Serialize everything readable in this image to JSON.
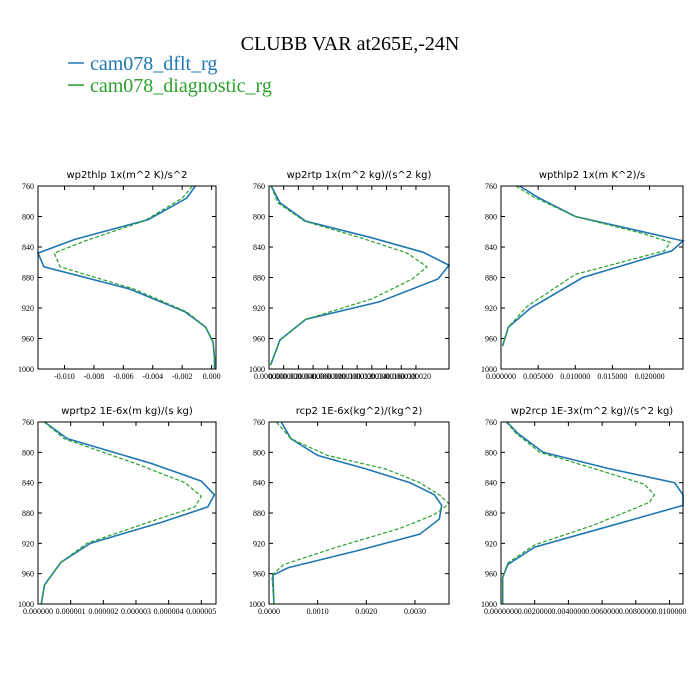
{
  "title": "CLUBB VAR at265E,-24N",
  "legend": [
    {
      "label": "cam078_dflt_rg",
      "color": "#1f77b4",
      "dash": "solid"
    },
    {
      "label": "cam078_diagnostic_rg",
      "color": "#2ca02c",
      "dash": "dashed"
    }
  ],
  "chart_data": [
    {
      "type": "line",
      "title": "wp2thlp  1x(m^2 K)/s^2",
      "xlim": [
        -0.0118,
        0.0003
      ],
      "ylim": [
        760,
        1000
      ],
      "y_reversed": true,
      "xticks": [
        -0.01,
        -0.008,
        -0.006,
        -0.004,
        -0.002,
        0.0
      ],
      "xtick_labels": [
        "-0.010",
        "-0.008",
        "-0.006",
        "-0.004",
        "-0.002",
        "0.000"
      ],
      "yticks": [
        760,
        800,
        840,
        880,
        920,
        960,
        1000
      ],
      "ytick_labels": [
        "760",
        "800",
        "840",
        "880",
        "920",
        "960",
        "1000"
      ],
      "series": [
        {
          "name": "cam078_dflt_rg",
          "x": [
            -0.0011,
            -0.0017,
            -0.0043,
            -0.0093,
            -0.0118,
            -0.0114,
            -0.0056,
            -0.0018,
            -0.0004,
            0.0001,
            0.0002,
            0.0002
          ],
          "y": [
            754,
            776,
            804,
            830,
            848,
            866,
            895,
            925,
            945,
            965,
            985,
            1000
          ]
        },
        {
          "name": "cam078_diagnostic_rg",
          "x": [
            -0.0013,
            -0.002,
            -0.0046,
            -0.0086,
            -0.0107,
            -0.0103,
            -0.0053,
            -0.0017,
            -0.0004,
            0.0001,
            0.0002,
            0.0002
          ],
          "y": [
            754,
            776,
            806,
            832,
            848,
            866,
            895,
            925,
            945,
            965,
            985,
            1000
          ]
        }
      ]
    },
    {
      "type": "line",
      "title": "wp2rtp  1x(m^2 kg)/(s^2 kg)",
      "xlim": [
        0.0,
        2.45e-05
      ],
      "ylim": [
        760,
        1000
      ],
      "y_reversed": true,
      "xticks": [
        0.0,
        2e-06,
        4e-06,
        6e-06,
        8e-06,
        1e-05,
        1.2e-05,
        1.4e-05,
        1.6e-05,
        1.8e-05,
        2e-05
      ],
      "xtick_labels": [
        "0.000000",
        "0.000002",
        "0.000004",
        "0.000006",
        "0.000008",
        "0.000010",
        "0.000012",
        "0.000014",
        "0.000016",
        "0.000018",
        "0.000020"
      ],
      "yticks": [
        760,
        800,
        840,
        880,
        920,
        960,
        1000
      ],
      "ytick_labels": [
        "760",
        "800",
        "840",
        "880",
        "920",
        "960",
        "1000"
      ],
      "series": [
        {
          "name": "cam078_dflt_rg",
          "x": [
            3e-07,
            1.5e-06,
            5e-06,
            1.4e-05,
            2.1e-05,
            2.45e-05,
            2.3e-05,
            1.5e-05,
            5e-06,
            1.5e-06,
            2e-07
          ],
          "y": [
            756,
            782,
            806,
            828,
            847,
            864,
            882,
            912,
            935,
            962,
            995
          ]
        },
        {
          "name": "cam078_diagnostic_rg",
          "x": [
            3e-07,
            1.2e-06,
            4.8e-06,
            1.25e-05,
            1.88e-05,
            2.15e-05,
            1.95e-05,
            1.4e-05,
            5e-06,
            1.5e-06,
            2e-07
          ],
          "y": [
            756,
            782,
            806,
            828,
            848,
            866,
            882,
            908,
            935,
            962,
            995
          ]
        }
      ]
    },
    {
      "type": "line",
      "title": "wpthlp2  1x(m K^2)/s",
      "xlim": [
        0.0,
        0.0245
      ],
      "ylim": [
        760,
        1000
      ],
      "y_reversed": true,
      "xticks": [
        0.0,
        0.005,
        0.01,
        0.015,
        0.02
      ],
      "xtick_labels": [
        "0.000000",
        "0.005000",
        "0.010000",
        "0.015000",
        "0.020000"
      ],
      "yticks": [
        760,
        800,
        840,
        880,
        920,
        960,
        1000
      ],
      "ytick_labels": [
        "760",
        "800",
        "840",
        "880",
        "920",
        "960",
        "1000"
      ],
      "series": [
        {
          "name": "cam078_dflt_rg",
          "x": [
            0.0025,
            0.005,
            0.01,
            0.02,
            0.0245,
            0.023,
            0.011,
            0.004,
            0.001,
            0.0002
          ],
          "y": [
            755,
            775,
            800,
            822,
            832,
            845,
            880,
            920,
            945,
            970
          ]
        },
        {
          "name": "cam078_diagnostic_rg",
          "x": [
            0.002,
            0.0045,
            0.01,
            0.019,
            0.0228,
            0.022,
            0.01,
            0.0035,
            0.001,
            0.0002
          ],
          "y": [
            755,
            775,
            800,
            822,
            834,
            845,
            876,
            918,
            945,
            970
          ]
        }
      ]
    },
    {
      "type": "line",
      "title": "wprtp2  1E-6x(m kg)/(s kg)",
      "xlim": [
        0.0,
        5.45e-06
      ],
      "ylim": [
        760,
        1000
      ],
      "y_reversed": true,
      "xticks": [
        0.0,
        1e-06,
        2e-06,
        3e-06,
        4e-06,
        5e-06
      ],
      "xtick_labels": [
        "0.000000",
        "0.000001",
        "0.000002",
        "0.000003",
        "0.000004",
        "0.000005"
      ],
      "yticks": [
        760,
        800,
        840,
        880,
        920,
        960,
        1000
      ],
      "ytick_labels": [
        "760",
        "800",
        "840",
        "880",
        "920",
        "960",
        "1000"
      ],
      "series": [
        {
          "name": "cam078_dflt_rg",
          "x": [
            2e-07,
            9e-07,
            3.5e-06,
            5e-06,
            5.4e-06,
            5.2e-06,
            3.8e-06,
            1.6e-06,
            7e-07,
            2e-07,
            1e-07
          ],
          "y": [
            754,
            782,
            815,
            838,
            856,
            872,
            892,
            920,
            945,
            975,
            1000
          ]
        },
        {
          "name": "cam078_diagnostic_rg",
          "x": [
            2e-07,
            8e-07,
            3e-06,
            4.5e-06,
            5e-06,
            4.8e-06,
            3.4e-06,
            1.5e-06,
            7e-07,
            2e-07,
            1e-07
          ],
          "y": [
            754,
            782,
            815,
            840,
            858,
            872,
            892,
            920,
            945,
            975,
            1000
          ]
        }
      ]
    },
    {
      "type": "line",
      "title": "rcp2  1E-6x(kg^2)/(kg^2)",
      "xlim": [
        0.0,
        0.0037
      ],
      "ylim": [
        760,
        1000
      ],
      "y_reversed": true,
      "xticks": [
        0.0,
        0.001,
        0.002,
        0.003
      ],
      "xtick_labels": [
        "0.0000",
        "0.0010",
        "0.0020",
        "0.0030"
      ],
      "yticks": [
        760,
        800,
        840,
        880,
        920,
        960,
        1000
      ],
      "ytick_labels": [
        "760",
        "800",
        "840",
        "880",
        "920",
        "960",
        "1000"
      ],
      "series": [
        {
          "name": "cam078_dflt_rg",
          "x": [
            0.00025,
            0.00045,
            0.001,
            0.002,
            0.0029,
            0.0034,
            0.00355,
            0.0035,
            0.0031,
            0.0018,
            0.0004,
            8e-05,
            0.0001
          ],
          "y": [
            755,
            782,
            804,
            822,
            840,
            856,
            870,
            888,
            908,
            930,
            952,
            962,
            1000
          ]
        },
        {
          "name": "cam078_diagnostic_rg",
          "x": [
            0.00015,
            0.00045,
            0.0012,
            0.0024,
            0.0031,
            0.0035,
            0.0037,
            0.0034,
            0.0027,
            0.0014,
            0.0003,
            6e-05,
            0.0001
          ],
          "y": [
            755,
            782,
            804,
            822,
            840,
            856,
            868,
            882,
            900,
            925,
            948,
            962,
            1000
          ]
        }
      ]
    },
    {
      "type": "line",
      "title": "wp2rcp  1E-3x(m^2 kg)/(s^2 kg)",
      "xlim": [
        0.0,
        0.0108
      ],
      "ylim": [
        760,
        1000
      ],
      "y_reversed": true,
      "xticks": [
        0.0,
        0.002,
        0.004,
        0.006,
        0.008,
        0.01
      ],
      "xtick_labels": [
        "0.0000000",
        "0.0020000",
        "0.0040000",
        "0.0060000",
        "0.0080000",
        "0.0100000"
      ],
      "yticks": [
        760,
        800,
        840,
        880,
        920,
        960,
        1000
      ],
      "ytick_labels": [
        "760",
        "800",
        "840",
        "880",
        "920",
        "960",
        "1000"
      ],
      "series": [
        {
          "name": "cam078_dflt_rg",
          "x": [
            0.00035,
            0.001,
            0.0025,
            0.0065,
            0.0103,
            0.0108,
            0.0108,
            0.006,
            0.002,
            0.0004,
            0.0001,
            0.0001
          ],
          "y": [
            754,
            775,
            800,
            822,
            840,
            856,
            870,
            900,
            925,
            948,
            965,
            1000
          ]
        },
        {
          "name": "cam078_diagnostic_rg",
          "x": [
            0.0003,
            0.0009,
            0.0023,
            0.0056,
            0.0085,
            0.0091,
            0.0088,
            0.0055,
            0.002,
            0.0004,
            0.0001,
            0.0001
          ],
          "y": [
            754,
            775,
            800,
            822,
            842,
            856,
            866,
            896,
            922,
            946,
            965,
            1000
          ]
        }
      ]
    }
  ]
}
